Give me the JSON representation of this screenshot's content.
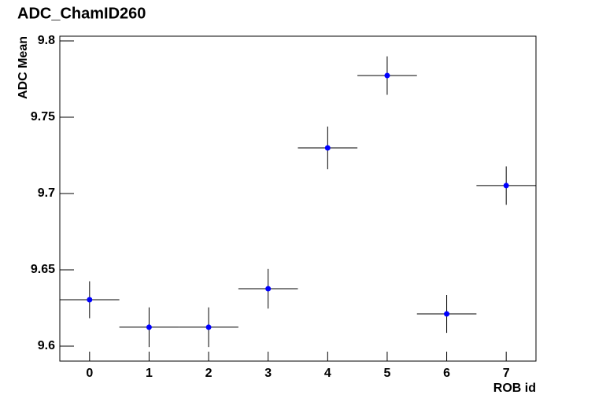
{
  "chart_data": {
    "type": "scatter",
    "title": "ADC_ChamID260",
    "x_label": "ROB id",
    "y_label": "ADC Mean",
    "x": [
      0,
      1,
      2,
      3,
      4,
      5,
      6,
      7
    ],
    "values": [
      9.6304,
      9.6124,
      9.6124,
      9.6376,
      9.7299,
      9.7773,
      9.6211,
      9.7052
    ],
    "errors": [
      0.0121,
      0.013,
      0.013,
      0.013,
      0.014,
      0.0126,
      0.0124,
      0.0126
    ],
    "xerr": [
      0.5,
      0.5,
      0.5,
      0.5,
      0.5,
      0.5,
      0.5,
      0.5
    ],
    "color": "#0000ff",
    "xlim": [
      -0.5,
      7.5
    ],
    "xticks": [
      0,
      1,
      2,
      3,
      4,
      5,
      6,
      7
    ],
    "ylim": [
      9.5902,
      9.8031
    ],
    "yticks": [
      9.6,
      9.65,
      9.7,
      9.75,
      9.8
    ],
    "grid": false
  }
}
